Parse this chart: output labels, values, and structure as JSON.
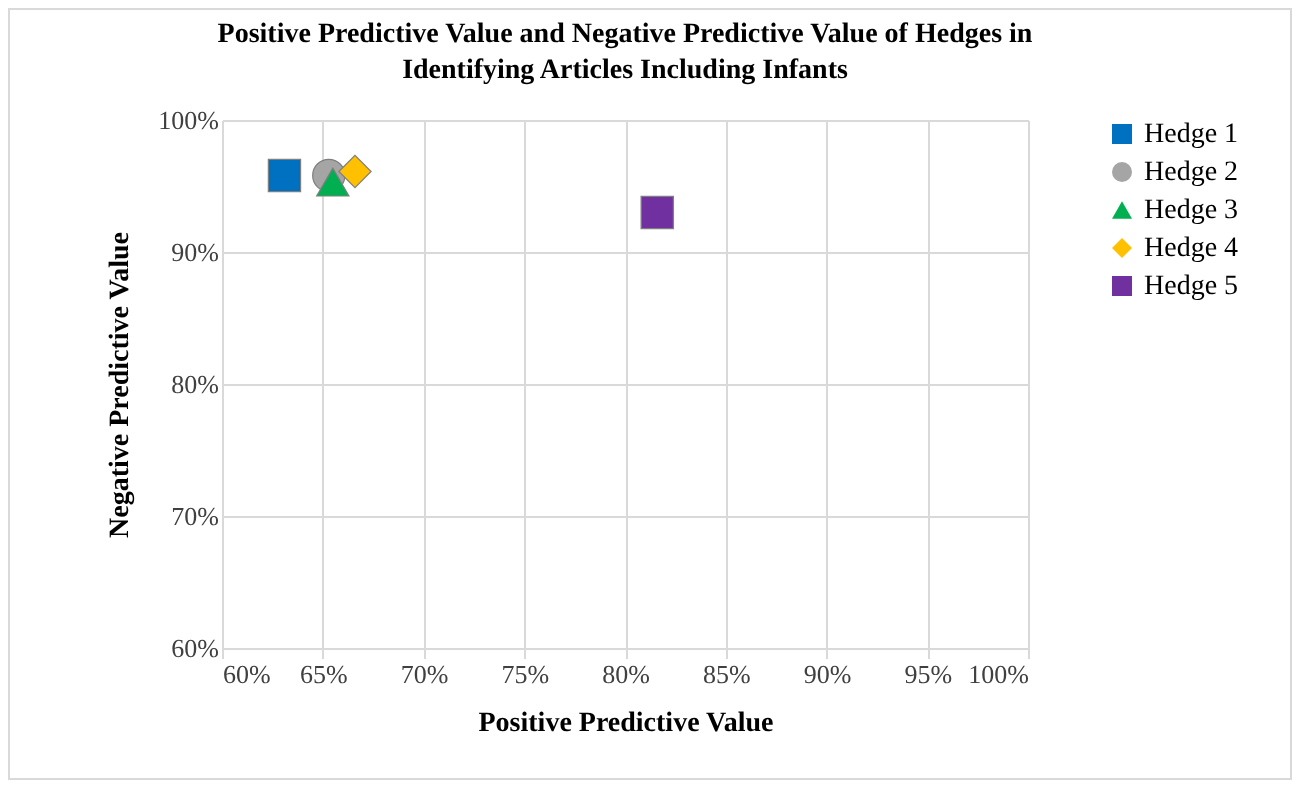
{
  "chart_data": {
    "type": "scatter",
    "title": "Positive Predictive Value and Negative Predictive Value of Hedges in Identifying Articles Including Infants",
    "xlabel": "Positive Predictive Value",
    "ylabel": "Negative Predictive Value",
    "xlim": [
      60,
      100
    ],
    "ylim": [
      60,
      100
    ],
    "xticks": [
      {
        "value": 60,
        "label": "60%"
      },
      {
        "value": 65,
        "label": "65%"
      },
      {
        "value": 70,
        "label": "70%"
      },
      {
        "value": 75,
        "label": "75%"
      },
      {
        "value": 80,
        "label": "80%"
      },
      {
        "value": 85,
        "label": "85%"
      },
      {
        "value": 90,
        "label": "90%"
      },
      {
        "value": 95,
        "label": "95%"
      },
      {
        "value": 100,
        "label": "100%"
      }
    ],
    "yticks": [
      {
        "value": 60,
        "label": "60%"
      },
      {
        "value": 70,
        "label": "70%"
      },
      {
        "value": 80,
        "label": "80%"
      },
      {
        "value": 90,
        "label": "90%"
      },
      {
        "value": 100,
        "label": "100%"
      }
    ],
    "grid": true,
    "legend": "right",
    "series": [
      {
        "name": "Hedge 1",
        "color": "#0070c0",
        "marker": "square",
        "x": [
          63.1
        ],
        "values": [
          95.8
        ]
      },
      {
        "name": "Hedge 2",
        "color": "#a5a5a5",
        "marker": "circle",
        "x": [
          65.3
        ],
        "values": [
          95.8
        ]
      },
      {
        "name": "Hedge 3",
        "color": "#00b050",
        "marker": "triangle",
        "x": [
          65.5
        ],
        "values": [
          95.3
        ]
      },
      {
        "name": "Hedge 4",
        "color": "#ffc000",
        "marker": "diamond",
        "x": [
          66.6
        ],
        "values": [
          96.1
        ]
      },
      {
        "name": "Hedge 5",
        "color": "#7030a0",
        "marker": "square",
        "x": [
          81.6
        ],
        "values": [
          93.0
        ]
      }
    ]
  }
}
